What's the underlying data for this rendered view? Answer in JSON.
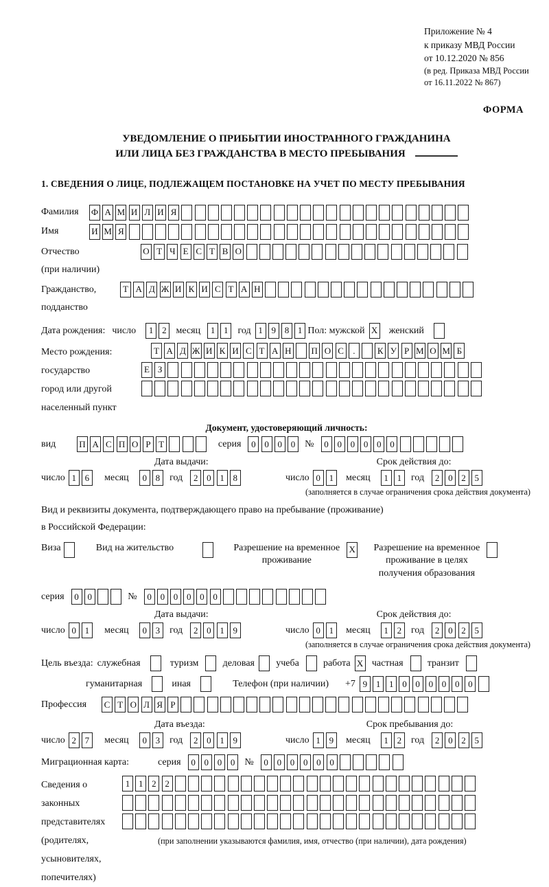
{
  "meta": {
    "appendix_lines": [
      "Приложение № 4",
      "к приказу МВД России",
      "от 10.12.2020 № 856"
    ],
    "amendment_lines": [
      "(в ред. Приказа МВД России",
      "от 16.11.2022 № 867)"
    ],
    "form_label": "ФОРМА"
  },
  "title": {
    "line1": "УВЕДОМЛЕНИЕ О ПРИБЫТИИ ИНОСТРАННОГО ГРАЖДАНИНА",
    "line2": "ИЛИ ЛИЦА БЕЗ ГРАЖДАНСТВА В МЕСТО ПРЕБЫВАНИЯ"
  },
  "section1_heading": "1. СВЕДЕНИЯ О ЛИЦЕ, ПОДЛЕЖАЩЕМ ПОСТАНОВКЕ НА УЧЕТ ПО МЕСТУ ПРЕБЫВАНИЯ",
  "person": {
    "surname_label": "Фамилия",
    "surname": {
      "chars": "ФАМИЛИЯ",
      "total": 29
    },
    "name_label": "Имя",
    "name": {
      "chars": "ИМЯ",
      "total": 29
    },
    "patronymic_label": "Отчество\n(при наличии)",
    "patronymic": {
      "chars": "ОТЧЕСТВО",
      "total": 25
    },
    "citizenship_label": "Гражданство,\nподданство",
    "citizenship": {
      "chars": "ТАДЖИКИСТАН",
      "total": 27
    },
    "birth_date_label": "Дата рождения:",
    "day_label": "число",
    "month_label": "месяц",
    "year_label": "год",
    "birth_day": "12",
    "birth_month": "11",
    "birth_year": "1981",
    "sex_label": "Пол: мужской",
    "sex_male": {
      "chars": "X",
      "total": 1
    },
    "female_label": "женский",
    "sex_female": {
      "chars": "",
      "total": 1
    },
    "birth_place_labels": "Место рождения:\nгосударство\nгород или другой\nнаселенный пункт",
    "birth_place_row1": {
      "chars": "ТАДЖИКИСТАН ПОС. КУРМОМБ",
      "total": 24
    },
    "birth_place_row2": {
      "chars": "ЕЗ",
      "total": 26
    },
    "birth_place_row3": {
      "chars": "",
      "total": 26
    }
  },
  "identity_doc": {
    "heading": "Документ, удостоверяющий личность:",
    "kind_label": "вид",
    "kind": {
      "chars": "ПАСПОРТ",
      "total": 10
    },
    "series_label": "серия",
    "series": {
      "chars": "0000",
      "total": 4
    },
    "number_label": "№",
    "number": {
      "chars": "000000",
      "total": 11
    },
    "issue_heading": "Дата выдачи:",
    "valid_heading": "Срок действия до:",
    "day_label": "число",
    "month_label": "месяц",
    "year_label": "год",
    "issue_day": "16",
    "issue_month": "08",
    "issue_year": "2018",
    "valid_day": "01",
    "valid_month": "11",
    "valid_year": "2025",
    "note": "(заполняется в случае ограничения срока действия документа)"
  },
  "residence_doc": {
    "intro_line1": "Вид и реквизиты документа, подтверждающего право на пребывание (проживание)",
    "intro_line2": "в Российской Федерации:",
    "visa_label": "Виза",
    "visa": {
      "chars": "",
      "total": 1
    },
    "residence_permit_label": "Вид на жительство",
    "residence_permit": {
      "chars": "",
      "total": 1
    },
    "temp_residence_label": "Разрешение на временное\nпроживание",
    "temp_residence": {
      "chars": "X",
      "total": 1
    },
    "temp_residence_edu_label": "Разрешение на временное\nпроживание в целях\nполучения образования",
    "temp_residence_edu": {
      "chars": "",
      "total": 1
    },
    "series_label": "серия",
    "series": {
      "chars": "00",
      "total": 4
    },
    "number_label": "№",
    "number": {
      "chars": "000000",
      "total": 14
    },
    "issue_heading": "Дата выдачи:",
    "valid_heading": "Срок действия до:",
    "day_label": "число",
    "month_label": "месяц",
    "year_label": "год",
    "issue_day": "01",
    "issue_month": "03",
    "issue_year": "2019",
    "valid_day": "01",
    "valid_month": "12",
    "valid_year": "2025",
    "note": "(заполняется в случае ограничения срока действия документа)"
  },
  "visit": {
    "purpose_label": "Цель въезда:",
    "official_label": "служебная",
    "official": {
      "chars": "",
      "total": 1
    },
    "tourism_label": "туризм",
    "tourism": {
      "chars": "",
      "total": 1
    },
    "business_label": "деловая",
    "business": {
      "chars": "",
      "total": 1
    },
    "study_label": "учеба",
    "study": {
      "chars": "",
      "total": 1
    },
    "work_label": "работа",
    "work": {
      "chars": "X",
      "total": 1
    },
    "private_label": "частная",
    "private": {
      "chars": "",
      "total": 1
    },
    "transit_label": "транзит",
    "transit": {
      "chars": "",
      "total": 1
    },
    "humanitarian_label": "гуманитарная",
    "humanitarian": {
      "chars": "",
      "total": 1
    },
    "other_label": "иная",
    "other": {
      "chars": "",
      "total": 1
    },
    "phone_label": "Телефон (при наличии)",
    "phone_prefix": "+7",
    "phone": {
      "chars": "911000000",
      "total": 10
    },
    "profession_label": "Профессия",
    "profession": {
      "chars": "СТОЛЯР",
      "total": 28
    }
  },
  "entry": {
    "entry_heading": "Дата въезда:",
    "stay_heading": "Срок пребывания до:",
    "day_label": "число",
    "month_label": "месяц",
    "year_label": "год",
    "entry_day": "27",
    "entry_month": "03",
    "entry_year": "2019",
    "stay_day": "19",
    "stay_month": "12",
    "stay_year": "2025"
  },
  "migration_card": {
    "label": "Миграционная карта:",
    "series_label": "серия",
    "series": {
      "chars": "0000",
      "total": 4
    },
    "number_label": "№",
    "number": {
      "chars": "000000",
      "total": 11
    }
  },
  "representatives": {
    "label": "Сведения о\nзаконных\nпредставителях\n(родителях,\nусыновителях,\nпопечителях)",
    "row1": {
      "chars": "1122",
      "total": 27
    },
    "row2": {
      "chars": "",
      "total": 27
    },
    "row3": {
      "chars": "",
      "total": 27
    },
    "note": "(при заполнении указываются фамилия, имя, отчество (при наличии), дата рождения)"
  }
}
